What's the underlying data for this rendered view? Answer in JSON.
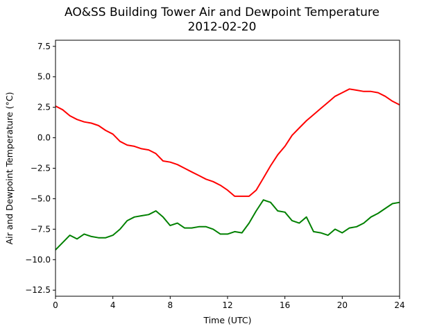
{
  "chart_data": {
    "type": "line",
    "title": "AO&SS Building Tower Air and Dewpoint Temperature",
    "subtitle": "2012-02-20",
    "xlabel": "Time (UTC)",
    "ylabel": "Air and Dewpoint Temperature (°C)",
    "xlim": [
      0,
      24
    ],
    "ylim": [
      -13,
      8
    ],
    "xticks": [
      0,
      4,
      8,
      12,
      16,
      20,
      24
    ],
    "xtick_labels": [
      "0",
      "4",
      "8",
      "12",
      "16",
      "20",
      "24"
    ],
    "yticks": [
      7.5,
      5.0,
      2.5,
      0.0,
      -2.5,
      -5.0,
      -7.5,
      -10.0,
      -12.5
    ],
    "ytick_labels": [
      "7.5",
      "5.0",
      "2.5",
      "0.0",
      "−2.5",
      "−5.0",
      "−7.5",
      "−10.0",
      "−12.5"
    ],
    "grid": false,
    "series": [
      {
        "color": "#ff0000",
        "x": [
          0,
          0.5,
          1,
          1.5,
          2,
          2.5,
          3,
          3.5,
          4,
          4.5,
          5,
          5.5,
          6,
          6.5,
          7,
          7.5,
          8,
          8.5,
          9,
          9.5,
          10,
          10.5,
          11,
          11.5,
          12,
          12.5,
          13,
          13.5,
          14,
          14.5,
          15,
          15.5,
          16,
          16.5,
          17,
          17.5,
          18,
          18.5,
          19,
          19.5,
          20,
          20.5,
          21,
          21.5,
          22,
          22.5,
          23,
          23.5,
          24
        ],
        "values": [
          2.6,
          2.3,
          1.8,
          1.5,
          1.3,
          1.2,
          1.0,
          0.6,
          0.3,
          -0.3,
          -0.6,
          -0.7,
          -0.9,
          -1.0,
          -1.3,
          -1.9,
          -2.0,
          -2.2,
          -2.5,
          -2.8,
          -3.1,
          -3.4,
          -3.6,
          -3.9,
          -4.3,
          -4.8,
          -4.8,
          -4.8,
          -4.3,
          -3.3,
          -2.3,
          -1.4,
          -0.7,
          0.2,
          0.8,
          1.4,
          1.9,
          2.4,
          2.9,
          3.4,
          3.7,
          4.0,
          3.9,
          3.8,
          3.8,
          3.7,
          3.4,
          3.0,
          2.7
        ]
      },
      {
        "color": "#008000",
        "x": [
          0,
          0.5,
          1,
          1.5,
          2,
          2.5,
          3,
          3.5,
          4,
          4.5,
          5,
          5.5,
          6,
          6.5,
          7,
          7.5,
          8,
          8.5,
          9,
          9.5,
          10,
          10.5,
          11,
          11.5,
          12,
          12.5,
          13,
          13.5,
          14,
          14.5,
          15,
          15.5,
          16,
          16.5,
          17,
          17.5,
          18,
          18.5,
          19,
          19.5,
          20,
          20.5,
          21,
          21.5,
          22,
          22.5,
          23,
          23.5,
          24
        ],
        "values": [
          -9.2,
          -8.6,
          -8.0,
          -8.3,
          -7.9,
          -8.1,
          -8.2,
          -8.2,
          -8.0,
          -7.5,
          -6.8,
          -6.5,
          -6.4,
          -6.3,
          -6.0,
          -6.5,
          -7.2,
          -7.0,
          -7.4,
          -7.4,
          -7.3,
          -7.3,
          -7.5,
          -7.9,
          -7.9,
          -7.7,
          -7.8,
          -7.0,
          -6.0,
          -5.1,
          -5.3,
          -6.0,
          -6.1,
          -6.8,
          -7.0,
          -6.5,
          -7.7,
          -7.8,
          -8.0,
          -7.5,
          -7.8,
          -7.4,
          -7.3,
          -7.0,
          -6.5,
          -6.2,
          -5.8,
          -5.4,
          -5.3
        ]
      }
    ]
  }
}
